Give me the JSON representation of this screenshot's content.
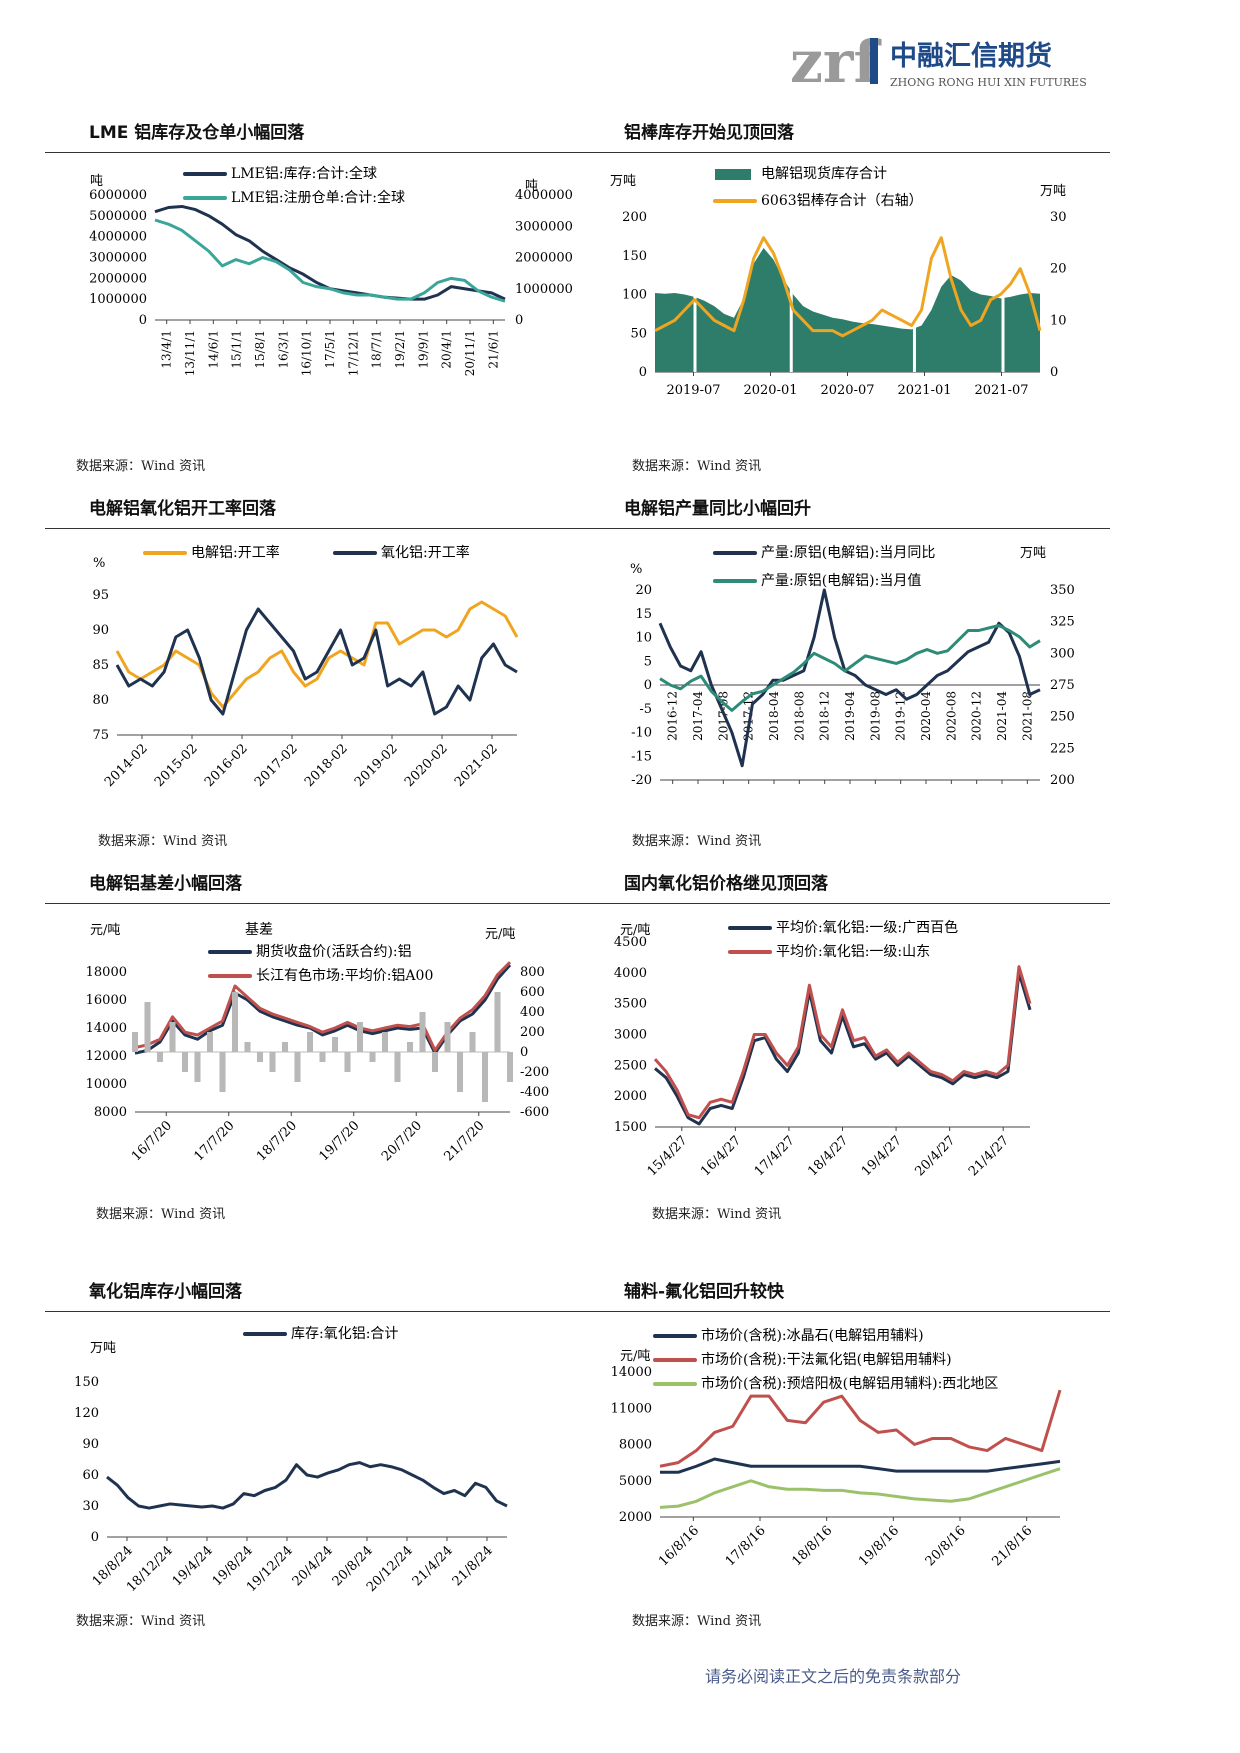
{
  "header": {
    "logo_text": "中融汇信期货",
    "logo_sub": "ZHONG RONG HUI XIN FUTURES",
    "logo_mark": "zrf"
  },
  "footer": {
    "text": "请务必阅读正文之后的免责条款部分"
  },
  "colors": {
    "navy": "#1f3350",
    "teal": "#3aa69a",
    "green": "#2e7d6b",
    "orange": "#f0a521",
    "red": "#c0504d",
    "lightgreen": "#9bc16a"
  },
  "chart_data": [
    {
      "id": "c1",
      "type": "line",
      "title": "LME 铝库存及仓单小幅回落",
      "source": "数据来源：Wind 资讯",
      "left_unit": "吨",
      "right_unit": "吨",
      "left_ticks": [
        "6000000",
        "5000000",
        "4000000",
        "3000000",
        "2000000",
        "1000000",
        "0"
      ],
      "right_ticks": [
        "4000000",
        "3000000",
        "2000000",
        "1000000",
        "0"
      ],
      "ylim_left": [
        0,
        6000000
      ],
      "ylim_right": [
        0,
        4000000
      ],
      "xticks": [
        "13/4/1",
        "13/11/1",
        "14/6/1",
        "15/1/1",
        "15/8/1",
        "16/3/1",
        "16/10/1",
        "17/5/1",
        "17/12/1",
        "18/7/1",
        "19/2/1",
        "19/9/1",
        "20/4/1",
        "20/11/1",
        "21/6/1"
      ],
      "series": [
        {
          "name": "LME铝:库存:合计:全球",
          "axis": "left",
          "color": "#1f3350",
          "values": [
            5200000,
            5400000,
            5450000,
            5300000,
            5000000,
            4600000,
            4100000,
            3800000,
            3300000,
            2900000,
            2500000,
            2200000,
            1800000,
            1500000,
            1400000,
            1300000,
            1200000,
            1100000,
            1050000,
            1000000,
            1000000,
            1200000,
            1600000,
            1500000,
            1400000,
            1300000,
            1000000
          ]
        },
        {
          "name": "LME铝:注册仓单:合计:全球",
          "axis": "left",
          "color": "#3aa69a",
          "values": [
            4800000,
            4600000,
            4300000,
            3800000,
            3300000,
            2600000,
            2900000,
            2700000,
            3000000,
            2800000,
            2400000,
            1800000,
            1600000,
            1500000,
            1300000,
            1200000,
            1200000,
            1100000,
            1000000,
            1000000,
            1300000,
            1800000,
            2000000,
            1900000,
            1400000,
            1100000,
            900000
          ]
        }
      ]
    },
    {
      "id": "c2",
      "type": "area+line",
      "title": "铝棒库存开始见顶回落",
      "source": "数据来源：Wind 资讯",
      "left_unit": "万吨",
      "right_unit": "万吨",
      "left_ticks": [
        "200",
        "150",
        "100",
        "50",
        "0"
      ],
      "right_ticks": [
        "30",
        "20",
        "10",
        "0"
      ],
      "ylim_left": [
        0,
        200
      ],
      "ylim_right": [
        0,
        30
      ],
      "xticks": [
        "2019-07",
        "2020-01",
        "2020-07",
        "2021-01",
        "2021-07"
      ],
      "series": [
        {
          "name": "电解铝现货库存合计",
          "axis": "left",
          "color": "#2e7d6b",
          "values": [
            102,
            101,
            102,
            100,
            97,
            92,
            85,
            75,
            70,
            95,
            140,
            160,
            145,
            120,
            100,
            85,
            78,
            74,
            70,
            68,
            65,
            63,
            62,
            60,
            58,
            56,
            55,
            60,
            80,
            110,
            125,
            118,
            105,
            100,
            98,
            95,
            97,
            100,
            102,
            101
          ]
        },
        {
          "name": "6063铝棒存合计（右轴）",
          "axis": "right",
          "color": "#f0a521",
          "values": [
            8,
            9,
            10,
            12,
            14,
            12,
            10,
            9,
            8,
            14,
            22,
            26,
            23,
            18,
            12,
            10,
            8,
            8,
            8,
            7,
            8,
            9,
            10,
            12,
            11,
            10,
            9,
            12,
            22,
            26,
            18,
            12,
            9,
            10,
            14,
            15,
            17,
            20,
            15,
            8
          ]
        }
      ]
    },
    {
      "id": "c3",
      "type": "line",
      "title": "电解铝氧化铝开工率回落",
      "source": "数据来源：Wind 资讯",
      "left_unit": "%",
      "left_ticks": [
        "95",
        "90",
        "85",
        "80",
        "75"
      ],
      "ylim_left": [
        75,
        95
      ],
      "xticks": [
        "2014-02",
        "2015-02",
        "2016-02",
        "2017-02",
        "2018-02",
        "2019-02",
        "2020-02",
        "2021-02"
      ],
      "series": [
        {
          "name": "电解铝:开工率",
          "color": "#f0a521",
          "values": [
            87,
            84,
            83,
            84,
            85,
            87,
            86,
            85,
            81,
            79,
            81,
            83,
            84,
            86,
            87,
            84,
            82,
            83,
            86,
            87,
            86,
            85,
            91,
            91,
            88,
            89,
            90,
            90,
            89,
            90,
            93,
            94,
            93,
            92,
            89
          ]
        },
        {
          "name": "氧化铝:开工率",
          "color": "#1f3350",
          "values": [
            85,
            82,
            83,
            82,
            84,
            89,
            90,
            86,
            80,
            78,
            84,
            90,
            93,
            91,
            89,
            87,
            83,
            84,
            87,
            90,
            85,
            86,
            90,
            82,
            83,
            82,
            84,
            78,
            79,
            82,
            80,
            86,
            88,
            85,
            84
          ]
        }
      ]
    },
    {
      "id": "c4",
      "type": "line",
      "title": "电解铝产量同比小幅回升",
      "source": "数据来源：Wind 资讯",
      "left_unit": "%",
      "right_unit": "万吨",
      "left_ticks": [
        "20",
        "15",
        "10",
        "5",
        "0",
        "-5",
        "-10",
        "-15",
        "-20"
      ],
      "right_ticks": [
        "350",
        "325",
        "300",
        "275",
        "250",
        "225",
        "200"
      ],
      "ylim_left": [
        -20,
        20
      ],
      "ylim_right": [
        200,
        350
      ],
      "xticks": [
        "2016-12",
        "2017-04",
        "2017-08",
        "2017-12",
        "2018-04",
        "2018-08",
        "2018-12",
        "2019-04",
        "2019-08",
        "2019-12",
        "2020-04",
        "2020-08",
        "2020-12",
        "2021-04",
        "2021-08"
      ],
      "series": [
        {
          "name": "产量:原铝(电解铝):当月同比",
          "axis": "left",
          "color": "#1f3350",
          "values": [
            13,
            8,
            4,
            3,
            7,
            0,
            -5,
            -10,
            -17,
            -4,
            -2,
            1,
            1,
            2,
            3,
            10,
            20,
            10,
            3,
            2,
            0,
            -1,
            -2,
            -1,
            -3,
            -2,
            0,
            2,
            3,
            5,
            7,
            8,
            9,
            13,
            11,
            6,
            -2,
            -1
          ]
        },
        {
          "name": "产量:原铝(电解铝):当月值",
          "axis": "right",
          "color": "#2e8b78",
          "values": [
            280,
            275,
            272,
            278,
            282,
            270,
            262,
            255,
            262,
            268,
            270,
            275,
            280,
            285,
            292,
            300,
            296,
            292,
            286,
            292,
            298,
            296,
            294,
            292,
            295,
            300,
            303,
            300,
            302,
            310,
            318,
            318,
            320,
            322,
            318,
            313,
            305,
            310
          ]
        }
      ]
    },
    {
      "id": "c5",
      "type": "line+bar",
      "title": "电解铝基差小幅回落",
      "source": "数据来源：Wind 资讯",
      "left_unit": "元/吨",
      "right_unit": "元/吨",
      "right_label": "基差",
      "left_ticks": [
        "18000",
        "16000",
        "14000",
        "12000",
        "10000",
        "8000"
      ],
      "right_ticks": [
        "800",
        "600",
        "400",
        "200",
        "0",
        "-200",
        "-400",
        "-600"
      ],
      "ylim_left": [
        8000,
        18000
      ],
      "ylim_right": [
        -600,
        800
      ],
      "xticks": [
        "16/7/20",
        "17/7/20",
        "18/7/20",
        "19/7/20",
        "20/7/20",
        "21/7/20"
      ],
      "series": [
        {
          "name": "期货收盘价(活跃合约):铝",
          "axis": "left",
          "color": "#1f3350",
          "values": [
            12200,
            12400,
            13000,
            14500,
            13500,
            13200,
            13800,
            14200,
            16500,
            16000,
            15200,
            14800,
            14500,
            14200,
            14000,
            13500,
            13800,
            14200,
            13800,
            13600,
            13800,
            14000,
            13900,
            14000,
            12200,
            13500,
            14500,
            15000,
            16000,
            17500,
            18500
          ]
        },
        {
          "name": "长江有色市场:平均价:铝A00",
          "axis": "left",
          "color": "#c0504d",
          "values": [
            12600,
            12800,
            13200,
            14800,
            13700,
            13500,
            14000,
            14500,
            17000,
            16200,
            15400,
            15000,
            14700,
            14400,
            14100,
            13700,
            14000,
            14400,
            14000,
            13800,
            14000,
            14200,
            14100,
            14300,
            12400,
            13700,
            14700,
            15300,
            16300,
            17800,
            18700
          ]
        },
        {
          "name": "基差",
          "axis": "right",
          "color": "#b8b8b8",
          "values": [
            200,
            500,
            -100,
            300,
            -200,
            -300,
            200,
            -400,
            600,
            100,
            -100,
            -200,
            100,
            -300,
            200,
            -100,
            150,
            -200,
            300,
            -100,
            200,
            -300,
            100,
            400,
            -200,
            300,
            -400,
            200,
            -500,
            600,
            -300
          ]
        }
      ]
    },
    {
      "id": "c6",
      "type": "line",
      "title": "国内氧化铝价格继见顶回落",
      "source": "数据来源：Wind 资讯",
      "left_unit": "元/吨",
      "left_ticks": [
        "4500",
        "4000",
        "3500",
        "3000",
        "2500",
        "2000",
        "1500"
      ],
      "ylim_left": [
        1500,
        4500
      ],
      "xticks": [
        "15/4/27",
        "16/4/27",
        "17/4/27",
        "18/4/27",
        "19/4/27",
        "20/4/27",
        "21/4/27"
      ],
      "series": [
        {
          "name": "平均价:氧化铝:一级:广西百色",
          "color": "#1f3350",
          "values": [
            2450,
            2300,
            2000,
            1650,
            1550,
            1800,
            1850,
            1800,
            2300,
            2900,
            2950,
            2600,
            2400,
            2700,
            3700,
            2900,
            2700,
            3300,
            2800,
            2850,
            2600,
            2700,
            2500,
            2650,
            2500,
            2350,
            2300,
            2200,
            2350,
            2300,
            2350,
            2300,
            2400,
            4000,
            3400
          ]
        },
        {
          "name": "平均价:氧化铝:一级:山东",
          "color": "#c0504d",
          "values": [
            2600,
            2400,
            2100,
            1700,
            1650,
            1900,
            1950,
            1900,
            2400,
            3000,
            3000,
            2700,
            2500,
            2800,
            3800,
            3000,
            2800,
            3400,
            2900,
            2950,
            2650,
            2750,
            2550,
            2700,
            2550,
            2400,
            2350,
            2250,
            2400,
            2350,
            2400,
            2350,
            2500,
            4100,
            3500
          ]
        }
      ]
    },
    {
      "id": "c7",
      "type": "line",
      "title": "氧化铝库存小幅回落",
      "source": "数据来源：Wind 资讯",
      "left_unit": "万吨",
      "left_ticks": [
        "150",
        "120",
        "90",
        "60",
        "30",
        "0"
      ],
      "ylim_left": [
        0,
        150
      ],
      "xticks": [
        "18/8/24",
        "18/12/24",
        "19/4/24",
        "19/8/24",
        "19/12/24",
        "20/4/24",
        "20/8/24",
        "20/12/24",
        "21/4/24",
        "21/8/24"
      ],
      "series": [
        {
          "name": "库存:氧化铝:合计",
          "color": "#1f3350",
          "values": [
            58,
            50,
            38,
            30,
            28,
            30,
            32,
            31,
            30,
            29,
            30,
            28,
            32,
            42,
            40,
            45,
            48,
            55,
            70,
            60,
            58,
            62,
            65,
            70,
            72,
            68,
            70,
            68,
            65,
            60,
            55,
            48,
            42,
            45,
            40,
            52,
            48,
            35,
            30
          ]
        }
      ]
    },
    {
      "id": "c8",
      "type": "line",
      "title": "辅料-氟化铝回升较快",
      "source": "数据来源：Wind 资讯",
      "left_unit": "元/吨",
      "left_ticks": [
        "14000",
        "11000",
        "8000",
        "5000",
        "2000"
      ],
      "ylim_left": [
        2000,
        14000
      ],
      "xticks": [
        "16/8/16",
        "17/8/16",
        "18/8/16",
        "19/8/16",
        "20/8/16",
        "21/8/16"
      ],
      "series": [
        {
          "name": "市场价(含税):冰晶石(电解铝用辅料)",
          "color": "#1f3350",
          "values": [
            5700,
            5700,
            6200,
            6800,
            6500,
            6200,
            6200,
            6200,
            6200,
            6200,
            6200,
            6200,
            6000,
            5800,
            5800,
            5800,
            5800,
            5800,
            5800,
            6000,
            6200,
            6400,
            6600
          ]
        },
        {
          "name": "市场价(含税):干法氟化铝(电解铝用辅料)",
          "color": "#c0504d",
          "values": [
            6200,
            6500,
            7500,
            9000,
            9500,
            12000,
            12000,
            10000,
            9800,
            11500,
            12000,
            10000,
            9000,
            9200,
            8000,
            8500,
            8500,
            7800,
            7500,
            8500,
            8000,
            7500,
            12500
          ]
        },
        {
          "name": "市场价(含税):预焙阳极(电解铝用辅料):西北地区",
          "color": "#9bc16a",
          "values": [
            2800,
            2900,
            3300,
            4000,
            4500,
            5000,
            4500,
            4300,
            4300,
            4200,
            4200,
            4000,
            3900,
            3700,
            3500,
            3400,
            3300,
            3500,
            4000,
            4500,
            5000,
            5500,
            6000
          ]
        }
      ]
    }
  ]
}
